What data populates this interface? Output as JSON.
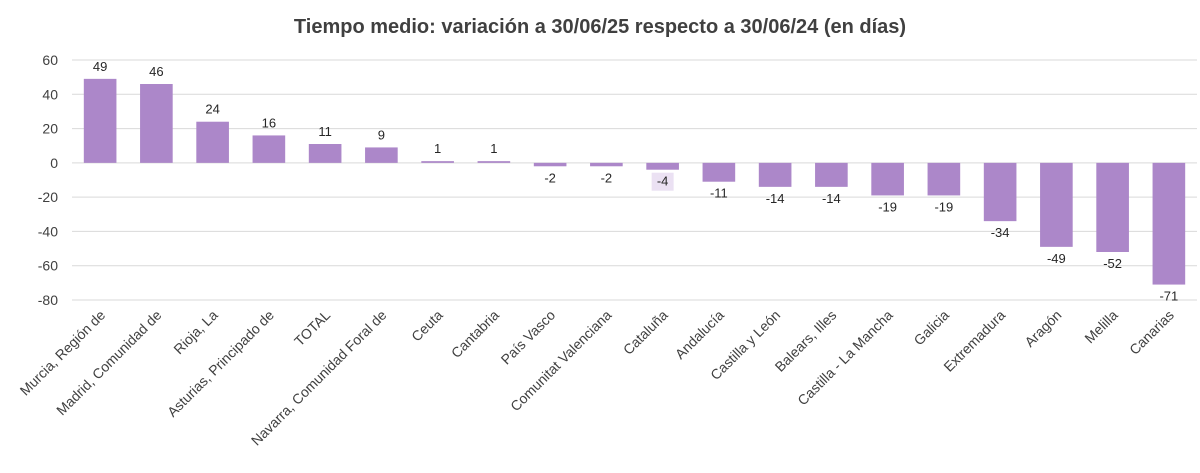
{
  "chart_data": {
    "type": "bar",
    "title": "Tiempo medio: variación a 30/06/25 respecto a 30/06/24 (en días)",
    "categories": [
      "Murcia, Región de",
      "Madrid, Comunidad de",
      "Rioja, La",
      "Asturias, Principado de",
      "TOTAL",
      "Navarra, Comunidad Foral de",
      "Ceuta",
      "Cantabria",
      "País Vasco",
      "Comunitat Valenciana",
      "Cataluña",
      "Andalucía",
      "Castilla y León",
      "Balears, Illes",
      "Castilla - La Mancha",
      "Galicia",
      "Extremadura",
      "Aragón",
      "Melilla",
      "Canarias"
    ],
    "values": [
      49,
      46,
      24,
      16,
      11,
      9,
      1,
      1,
      -2,
      -2,
      -4,
      -11,
      -14,
      -14,
      -19,
      -19,
      -34,
      -49,
      -52,
      -71
    ],
    "data_labels": [
      "49",
      "46",
      "24",
      "16",
      "11",
      "9",
      "1",
      "1",
      "-2",
      "-2",
      "-4",
      "-11",
      "-14",
      "-14",
      "-19",
      "-19",
      "-34",
      "-49",
      "-52",
      "-71"
    ],
    "y_ticks": [
      "60",
      "40",
      "20",
      "0",
      "-20",
      "-40",
      "-60",
      "-80"
    ],
    "ylim": [
      -80,
      60
    ],
    "grid": true,
    "bar_color": "#ac87c9",
    "highlight_label_index": 10,
    "highlight_label_color": "#ebe1f3",
    "xlabel": "",
    "ylabel": ""
  }
}
